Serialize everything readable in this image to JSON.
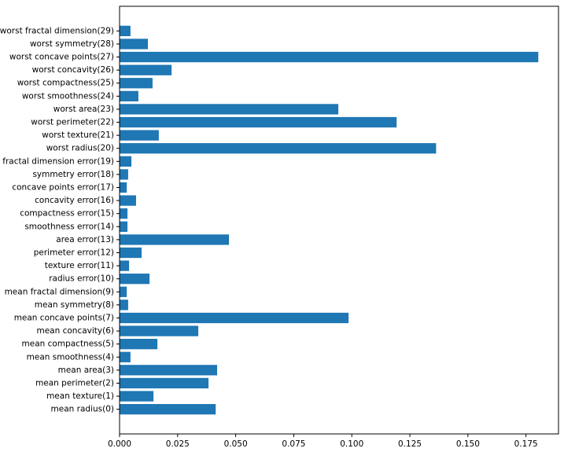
{
  "chart_data": {
    "type": "barh",
    "color": "#1f77b4",
    "categories": [
      "mean radius(0)",
      "mean texture(1)",
      "mean perimeter(2)",
      "mean area(3)",
      "mean smoothness(4)",
      "mean compactness(5)",
      "mean concavity(6)",
      "mean concave points(7)",
      "mean symmetry(8)",
      "mean fractal dimension(9)",
      "radius error(10)",
      "texture error(11)",
      "perimeter error(12)",
      "area error(13)",
      "smoothness error(14)",
      "compactness error(15)",
      "concavity error(16)",
      "concave points error(17)",
      "symmetry error(18)",
      "fractal dimension error(19)",
      "worst radius(20)",
      "worst texture(21)",
      "worst perimeter(22)",
      "worst area(23)",
      "worst smoothness(24)",
      "worst compactness(25)",
      "worst concavity(26)",
      "worst concave points(27)",
      "worst symmetry(28)",
      "worst fractal dimension(29)"
    ],
    "values": [
      0.0414,
      0.0146,
      0.0383,
      0.042,
      0.0047,
      0.0163,
      0.0339,
      0.0986,
      0.0037,
      0.0031,
      0.0129,
      0.0041,
      0.0095,
      0.0471,
      0.0034,
      0.0034,
      0.0071,
      0.0031,
      0.0037,
      0.0051,
      0.1363,
      0.0169,
      0.1193,
      0.0942,
      0.0081,
      0.0142,
      0.0224,
      0.1803,
      0.0122,
      0.0047
    ],
    "xlim": [
      0,
      0.189
    ],
    "xticks": [
      {
        "value": 0,
        "label": "0.000"
      },
      {
        "value": 0.025,
        "label": "0.025"
      },
      {
        "value": 0.05,
        "label": "0.050"
      },
      {
        "value": 0.075,
        "label": "0.075"
      },
      {
        "value": 0.1,
        "label": "0.100"
      },
      {
        "value": 0.125,
        "label": "0.125"
      },
      {
        "value": 0.15,
        "label": "0.150"
      },
      {
        "value": 0.175,
        "label": "0.175"
      }
    ]
  }
}
